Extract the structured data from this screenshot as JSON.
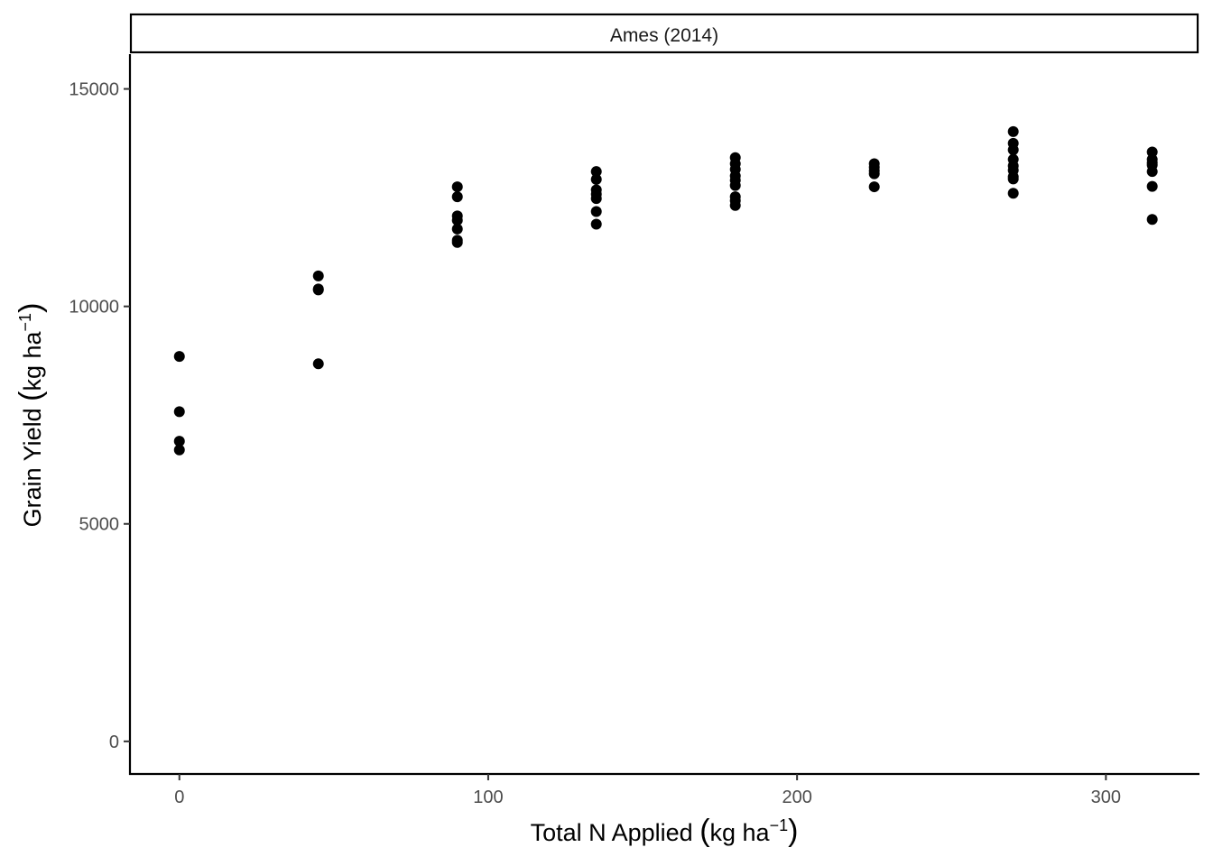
{
  "chart_data": {
    "type": "scatter",
    "facet_label": "Ames (2014)",
    "xlabel_main": "Total N Applied ",
    "xlabel_unit": "kg ha",
    "xlabel_exp": "−1",
    "ylabel_main": "Grain Yield ",
    "ylabel_unit": "kg ha",
    "ylabel_exp": "−1",
    "xlim": [
      -16,
      330
    ],
    "ylim": [
      -750,
      15800
    ],
    "x_ticks": [
      0,
      100,
      200,
      300
    ],
    "y_ticks": [
      0,
      5000,
      10000,
      15000
    ],
    "grid": false,
    "point_color": "#000000",
    "series": [
      {
        "points": [
          {
            "x": 0,
            "y": 8850
          },
          {
            "x": 0,
            "y": 7580
          },
          {
            "x": 0,
            "y": 6900
          },
          {
            "x": 0,
            "y": 6700
          },
          {
            "x": 45,
            "y": 10700
          },
          {
            "x": 45,
            "y": 10400
          },
          {
            "x": 45,
            "y": 10380
          },
          {
            "x": 45,
            "y": 8680
          },
          {
            "x": 90,
            "y": 12750
          },
          {
            "x": 90,
            "y": 12520
          },
          {
            "x": 90,
            "y": 12080
          },
          {
            "x": 90,
            "y": 11980
          },
          {
            "x": 90,
            "y": 11780
          },
          {
            "x": 90,
            "y": 11520
          },
          {
            "x": 90,
            "y": 11470
          },
          {
            "x": 135,
            "y": 13100
          },
          {
            "x": 135,
            "y": 12920
          },
          {
            "x": 135,
            "y": 12680
          },
          {
            "x": 135,
            "y": 12580
          },
          {
            "x": 135,
            "y": 12480
          },
          {
            "x": 135,
            "y": 12180
          },
          {
            "x": 135,
            "y": 11890
          },
          {
            "x": 180,
            "y": 13420
          },
          {
            "x": 180,
            "y": 13280
          },
          {
            "x": 180,
            "y": 13150
          },
          {
            "x": 180,
            "y": 13000
          },
          {
            "x": 180,
            "y": 12900
          },
          {
            "x": 180,
            "y": 12780
          },
          {
            "x": 180,
            "y": 12520
          },
          {
            "x": 180,
            "y": 12430
          },
          {
            "x": 180,
            "y": 12320
          },
          {
            "x": 225,
            "y": 13280
          },
          {
            "x": 225,
            "y": 13200
          },
          {
            "x": 225,
            "y": 13120
          },
          {
            "x": 225,
            "y": 13050
          },
          {
            "x": 225,
            "y": 12750
          },
          {
            "x": 270,
            "y": 14020
          },
          {
            "x": 270,
            "y": 13750
          },
          {
            "x": 270,
            "y": 13600
          },
          {
            "x": 270,
            "y": 13380
          },
          {
            "x": 270,
            "y": 13230
          },
          {
            "x": 270,
            "y": 13130
          },
          {
            "x": 270,
            "y": 12980
          },
          {
            "x": 270,
            "y": 12930
          },
          {
            "x": 270,
            "y": 12600
          },
          {
            "x": 315,
            "y": 13550
          },
          {
            "x": 315,
            "y": 13380
          },
          {
            "x": 315,
            "y": 13300
          },
          {
            "x": 315,
            "y": 13250
          },
          {
            "x": 315,
            "y": 13100
          },
          {
            "x": 315,
            "y": 12760
          },
          {
            "x": 315,
            "y": 12000
          }
        ]
      }
    ]
  }
}
